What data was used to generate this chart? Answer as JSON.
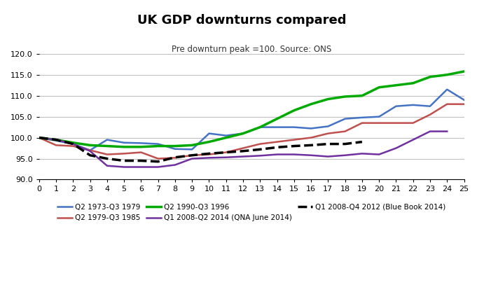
{
  "title": "UK GDP downturns compared",
  "subtitle": "Pre downturn peak =100. Source: ONS",
  "xlim": [
    0,
    25
  ],
  "ylim": [
    90.0,
    120.0
  ],
  "yticks": [
    90.0,
    95.0,
    100.0,
    105.0,
    110.0,
    115.0,
    120.0
  ],
  "xticks": [
    0,
    1,
    2,
    3,
    4,
    5,
    6,
    7,
    8,
    9,
    10,
    11,
    12,
    13,
    14,
    15,
    16,
    17,
    18,
    19,
    20,
    21,
    22,
    23,
    24,
    25
  ],
  "series": {
    "Q2 1973-Q3 1979": {
      "color": "#4472C4",
      "linestyle": "-",
      "linewidth": 1.8,
      "data": [
        100.0,
        99.3,
        98.5,
        97.0,
        99.5,
        98.8,
        98.7,
        98.5,
        97.3,
        97.2,
        101.0,
        100.5,
        101.0,
        102.5,
        102.5,
        102.5,
        102.2,
        102.7,
        104.5,
        104.8,
        105.0,
        107.5,
        107.8,
        107.5,
        111.5,
        109.0
      ]
    },
    "Q2 1979-Q3 1985": {
      "color": "#C0504D",
      "linestyle": "-",
      "linewidth": 1.8,
      "data": [
        100.0,
        98.2,
        98.0,
        97.0,
        96.0,
        96.2,
        96.5,
        95.0,
        95.2,
        95.8,
        96.0,
        96.5,
        97.5,
        98.5,
        99.0,
        99.5,
        100.0,
        101.0,
        101.5,
        103.5,
        103.5,
        103.5,
        103.5,
        105.5,
        108.0,
        108.0
      ]
    },
    "Q2 1990-Q3 1996": {
      "color": "#00AA00",
      "linestyle": "-",
      "linewidth": 2.5,
      "data": [
        100.0,
        99.5,
        98.8,
        98.2,
        98.0,
        97.8,
        97.8,
        98.0,
        98.0,
        98.2,
        99.0,
        100.0,
        101.0,
        102.5,
        104.5,
        106.5,
        108.0,
        109.2,
        109.8,
        110.0,
        112.0,
        112.5,
        113.0,
        114.5,
        115.0,
        115.8
      ]
    },
    "Q1 2008-Q2 2014 (QNA June 2014)": {
      "color": "#7030A0",
      "linestyle": "-",
      "linewidth": 1.8,
      "data": [
        100.0,
        99.5,
        98.5,
        96.8,
        93.3,
        93.0,
        93.0,
        93.0,
        93.5,
        95.0,
        95.2,
        95.3,
        95.5,
        95.7,
        96.0,
        96.0,
        95.8,
        95.5,
        95.8,
        96.2,
        96.0,
        97.5,
        99.5,
        101.5,
        101.5,
        null
      ]
    },
    "Q1 2008-Q4 2012 (Blue Book 2014)": {
      "color": "#000000",
      "linestyle": "--",
      "linewidth": 2.5,
      "data": [
        100.0,
        99.5,
        98.5,
        95.8,
        95.0,
        94.5,
        94.5,
        94.3,
        95.3,
        95.8,
        96.2,
        96.5,
        96.8,
        97.2,
        97.7,
        98.0,
        98.2,
        98.5,
        98.5,
        99.0,
        null,
        null,
        null,
        null,
        null,
        null
      ]
    }
  },
  "background_color": "#FFFFFF",
  "grid_color": "#C0C0C0",
  "title_fontsize": 13,
  "subtitle_fontsize": 8.5
}
